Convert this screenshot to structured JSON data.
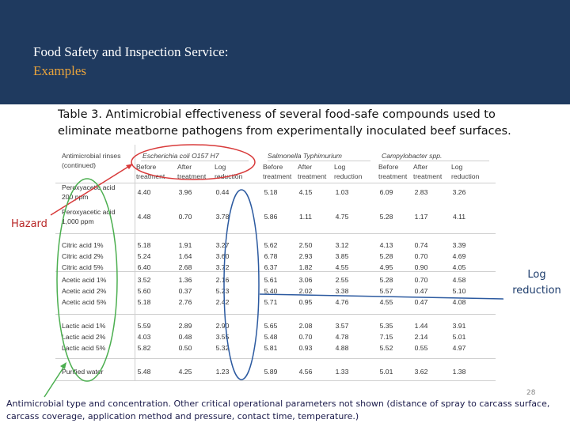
{
  "banner": {
    "title": "Food Safety and Inspection Service:",
    "subtitle": "Examples"
  },
  "caption": "Table 3. Antimicrobial effectiveness of several food-safe compounds used to eliminate meatborne pathogens from experimentally inoculated beef surfaces.",
  "table": {
    "header_rinse": [
      "Antimicrobial rinses",
      "(continued)"
    ],
    "groups": [
      "Escherichia coli O157 H7",
      "Salmonella Typhimurium",
      "Campylobacter spp."
    ],
    "subheaders": [
      [
        "Before",
        "treatment"
      ],
      [
        "After",
        "treatment"
      ],
      [
        "Log",
        "reduction"
      ]
    ],
    "rows": [
      {
        "label": [
          "Peroxyacetic acid",
          "200 ppm"
        ],
        "values": [
          "4.40",
          "3.96",
          "0.44",
          "5.18",
          "4.15",
          "1.03",
          "6.09",
          "2.83",
          "3.26"
        ]
      },
      {
        "label": [
          "Peroxyacetic acid",
          "1,000 ppm"
        ],
        "values": [
          "4.48",
          "0.70",
          "3.78",
          "5.86",
          "1.11",
          "4.75",
          "5.28",
          "1.17",
          "4.11"
        ]
      },
      {
        "label": [
          "Citric acid 1%"
        ],
        "values": [
          "5.18",
          "1.91",
          "3.27",
          "5.62",
          "2.50",
          "3.12",
          "4.13",
          "0.74",
          "3.39"
        ]
      },
      {
        "label": [
          "Citric acid 2%"
        ],
        "values": [
          "5.24",
          "1.64",
          "3.60",
          "6.78",
          "2.93",
          "3.85",
          "5.28",
          "0.70",
          "4.69"
        ]
      },
      {
        "label": [
          "Citric acid 5%"
        ],
        "values": [
          "6.40",
          "2.68",
          "3.72",
          "6.37",
          "1.82",
          "4.55",
          "4.95",
          "0.90",
          "4.05"
        ]
      },
      {
        "label": [
          "Acetic acid 1%"
        ],
        "values": [
          "3.52",
          "1.36",
          "2.16",
          "5.61",
          "3.06",
          "2.55",
          "5.28",
          "0.70",
          "4.58"
        ]
      },
      {
        "label": [
          "Acetic acid 2%"
        ],
        "values": [
          "5.60",
          "0.37",
          "5.23",
          "5.40",
          "2.02",
          "3.38",
          "5.57",
          "0.47",
          "5.10"
        ]
      },
      {
        "label": [
          "Acetic acid 5%"
        ],
        "values": [
          "5.18",
          "2.76",
          "2.42",
          "5.71",
          "0.95",
          "4.76",
          "4.55",
          "0.47",
          "4.08"
        ]
      },
      {
        "label": [
          "Lactic acid 1%"
        ],
        "values": [
          "5.59",
          "2.89",
          "2.90",
          "5.65",
          "2.08",
          "3.57",
          "5.35",
          "1.44",
          "3.91"
        ]
      },
      {
        "label": [
          "Lactic acid 2%"
        ],
        "values": [
          "4.03",
          "0.48",
          "3.55",
          "5.48",
          "0.70",
          "4.78",
          "7.15",
          "2.14",
          "5.01"
        ]
      },
      {
        "label": [
          "Lactic acid 5%"
        ],
        "values": [
          "5.82",
          "0.50",
          "5.32",
          "5.81",
          "0.93",
          "4.88",
          "5.52",
          "0.55",
          "4.97"
        ]
      },
      {
        "label": [
          "Purified water"
        ],
        "values": [
          "5.48",
          "4.25",
          "1.23",
          "5.89",
          "4.56",
          "1.33",
          "5.01",
          "3.62",
          "1.38"
        ]
      }
    ]
  },
  "annotations": {
    "hazard": "Hazard",
    "log_reduction": [
      "Log",
      "reduction"
    ]
  },
  "footnote": "Antimicrobial type and concentration.  Other critical operational parameters not shown (distance of spray to carcass surface, carcass coverage, application method and pressure, contact time, temperature.)",
  "page_number": "28",
  "colors": {
    "banner": "#1f3a5f",
    "subtitle": "#e8a33c",
    "hazard": "#b82727",
    "circle_red": "#d83a3a",
    "circle_green": "#4caf50",
    "circle_blue": "#2c5aa0"
  }
}
